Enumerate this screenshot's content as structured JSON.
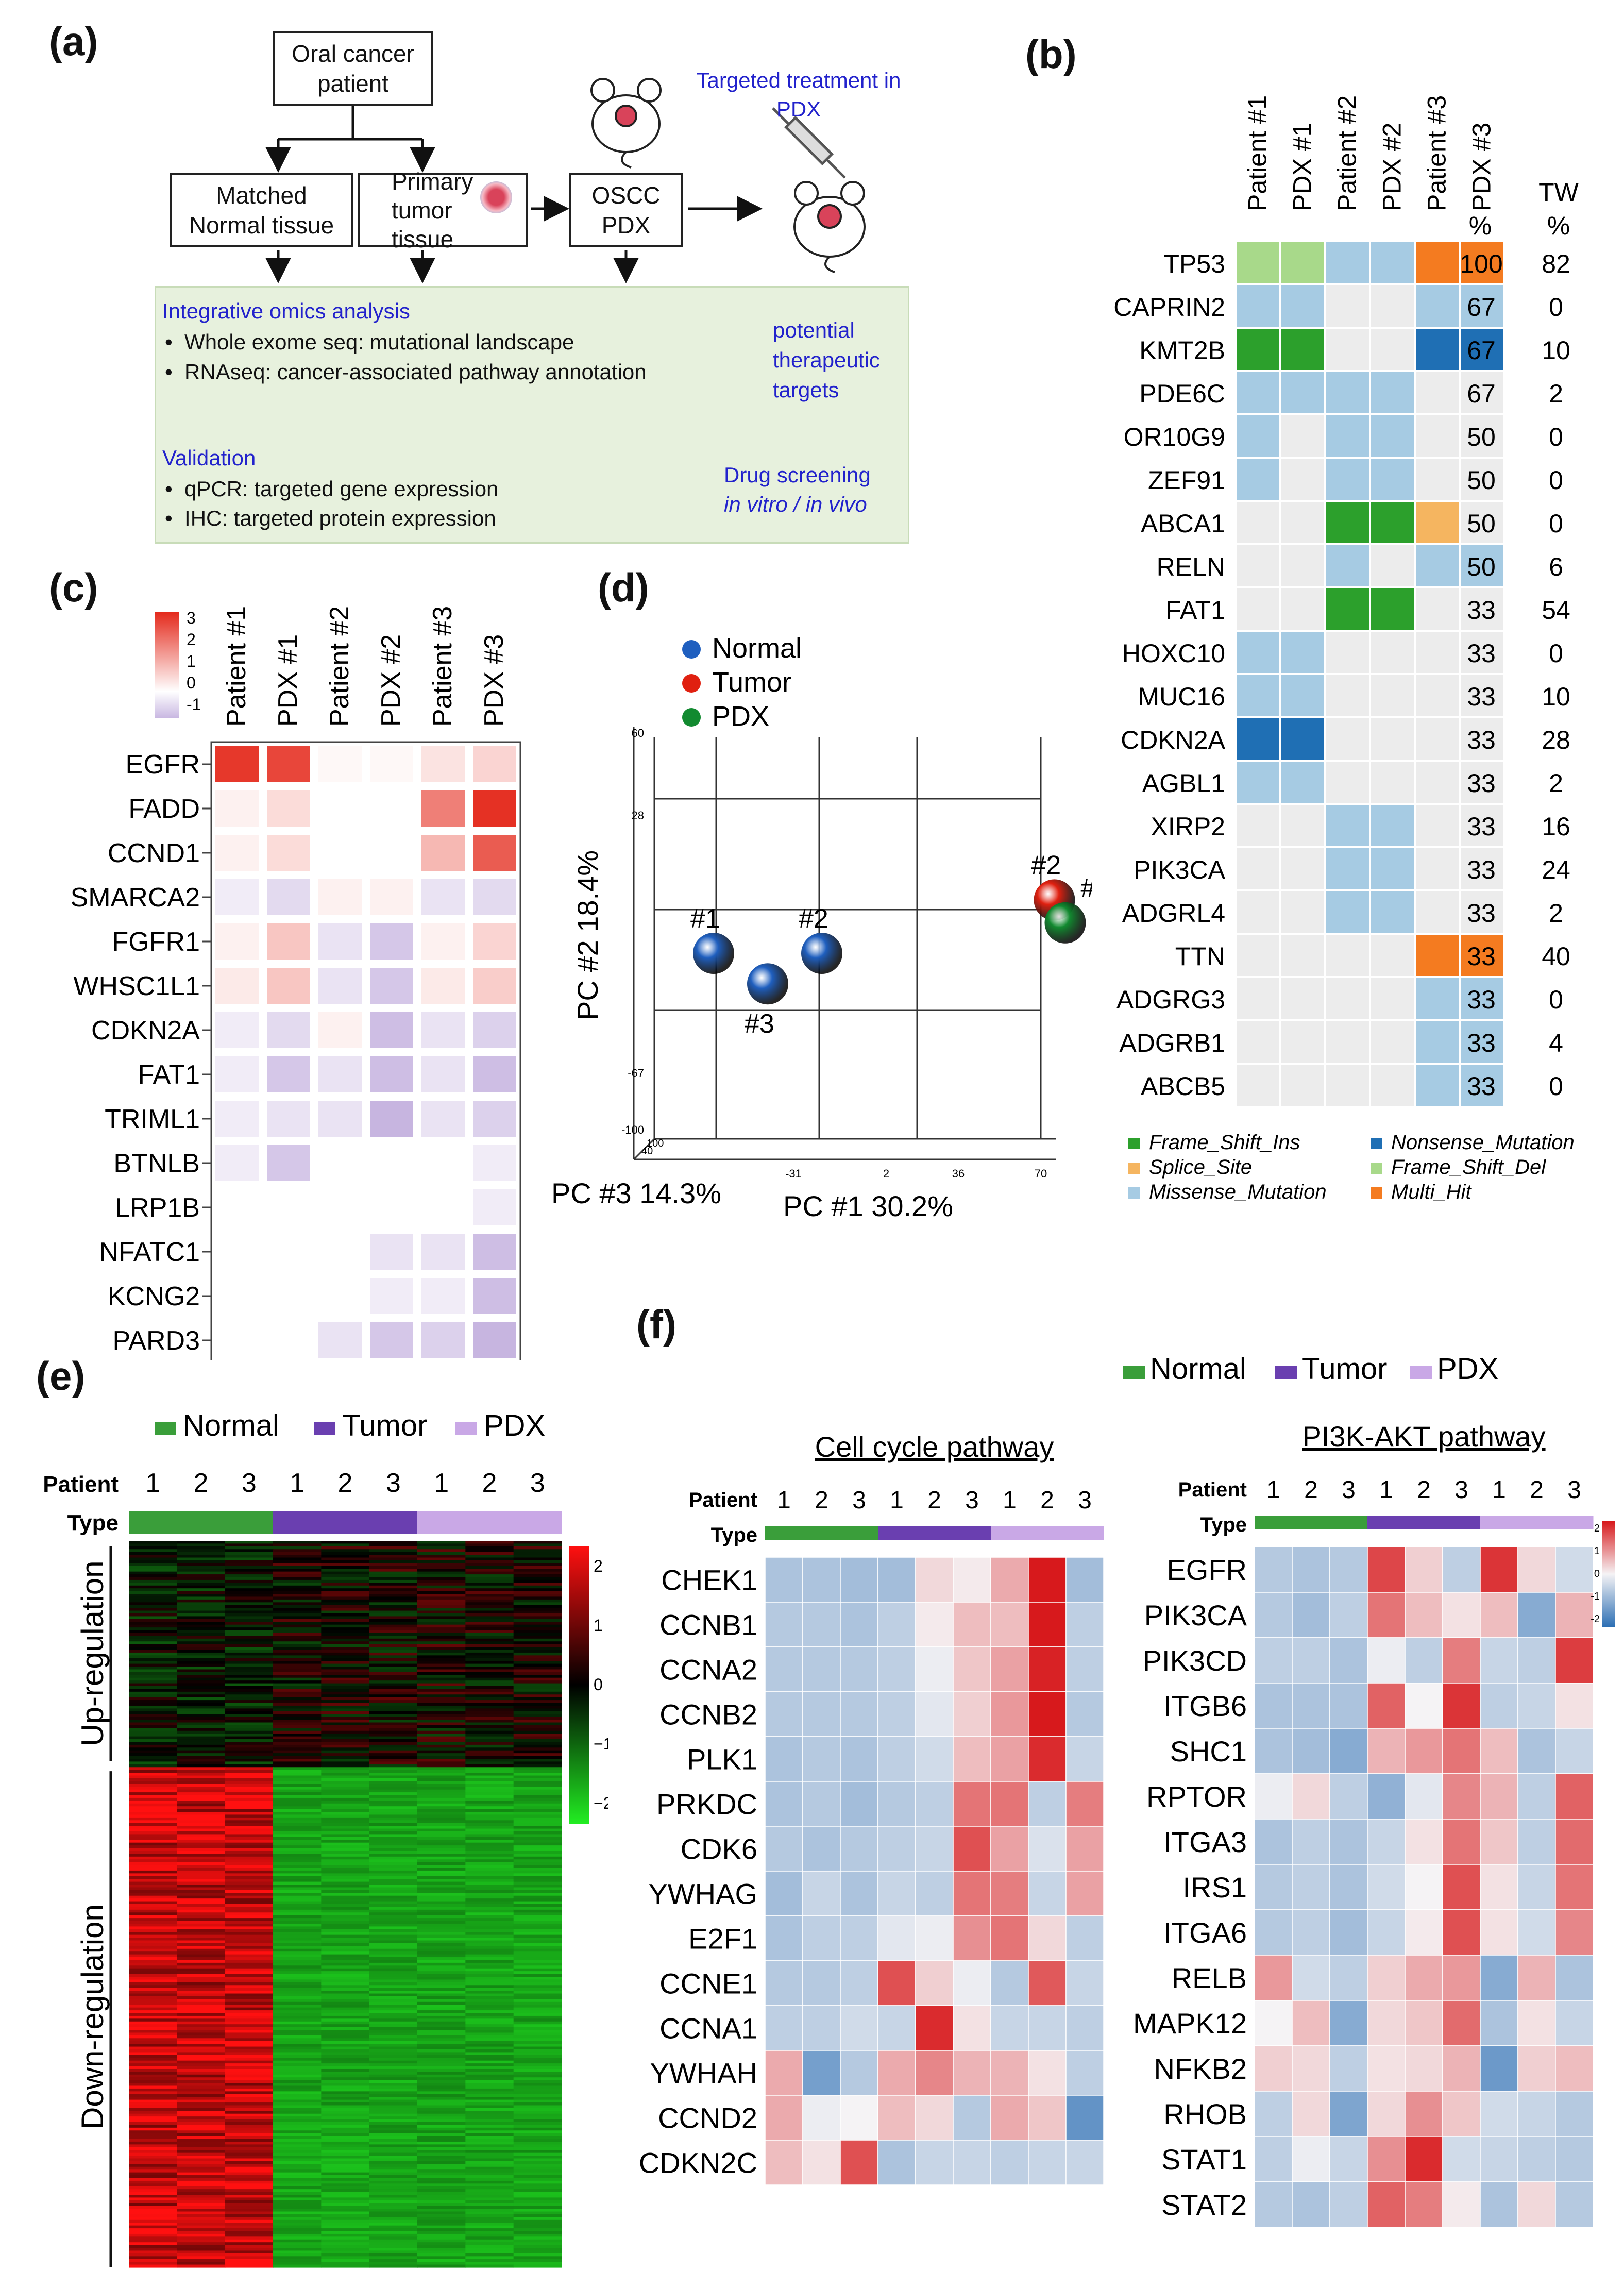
{
  "panel_labels": {
    "a": "(a)",
    "b": "(b)",
    "c": "(c)",
    "d": "(d)",
    "e": "(e)",
    "f": "(f)"
  },
  "panel_a": {
    "patient": "Oral cancer patient",
    "matched": "Matched Normal tissue",
    "primary": "Primary tumor tissue",
    "oscc": "OSCC PDX",
    "targeted": "Targeted treatment in PDX",
    "omics_title": "Integrative omics analysis",
    "omics_1": "Whole exome seq: mutational landscape",
    "omics_2": "RNAseq: cancer-associated pathway annotation",
    "potential": "potential therapeutic targets",
    "validation_title": "Validation",
    "val_1": "qPCR: targeted gene expression",
    "val_2": "IHC: targeted protein expression",
    "drug": "Drug screening",
    "drug_sub": "in vitro / in vivo",
    "colors": {
      "blue_text": "#2222cc",
      "box_bg": "#e7f1dd"
    }
  },
  "panel_b": {
    "columns": [
      "Patient #1",
      "PDX #1",
      "Patient #2",
      "PDX #2",
      "Patient #3",
      "PDX #3"
    ],
    "pct_header": "%",
    "tw_header": "TW %",
    "genes": [
      "TP53",
      "CAPRIN2",
      "KMT2B",
      "PDE6C",
      "OR10G9",
      "ZEF91",
      "ABCA1",
      "RELN",
      "FAT1",
      "HOXC10",
      "MUC16",
      "CDKN2A",
      "AGBL1",
      "XIRP2",
      "PIK3CA",
      "ADGRL4",
      "TTN",
      "ADGRG3",
      "ADGRB1",
      "ABCB5"
    ],
    "pct": [
      "100",
      "67",
      "67",
      "67",
      "50",
      "50",
      "50",
      "50",
      "33",
      "33",
      "33",
      "33",
      "33",
      "33",
      "33",
      "33",
      "33",
      "33",
      "33",
      "33"
    ],
    "tw": [
      "82",
      "0",
      "10",
      "2",
      "0",
      "0",
      "0",
      "6",
      "54",
      "0",
      "10",
      "28",
      "2",
      "16",
      "24",
      "2",
      "40",
      "0",
      "4",
      "0"
    ],
    "matrix": [
      [
        "fsd",
        "fsd",
        "mis",
        "mis",
        "mh",
        "mh"
      ],
      [
        "mis",
        "mis",
        "",
        "",
        "mis",
        "mis"
      ],
      [
        "fsi",
        "fsi",
        "",
        "",
        "non",
        "non"
      ],
      [
        "mis",
        "mis",
        "mis",
        "mis",
        "",
        ""
      ],
      [
        "mis",
        "",
        "mis",
        "mis",
        "",
        ""
      ],
      [
        "mis",
        "",
        "mis",
        "mis",
        "",
        ""
      ],
      [
        "",
        "",
        "fsi",
        "fsi",
        "ss",
        ""
      ],
      [
        "",
        "",
        "mis",
        "",
        "mis",
        "mis"
      ],
      [
        "",
        "",
        "fsi",
        "fsi",
        "",
        ""
      ],
      [
        "mis",
        "mis",
        "",
        "",
        "",
        ""
      ],
      [
        "mis",
        "mis",
        "",
        "",
        "",
        ""
      ],
      [
        "non",
        "non",
        "",
        "",
        "",
        ""
      ],
      [
        "mis",
        "mis",
        "",
        "",
        "",
        ""
      ],
      [
        "",
        "",
        "mis",
        "mis",
        "",
        ""
      ],
      [
        "",
        "",
        "mis",
        "mis",
        "",
        ""
      ],
      [
        "",
        "",
        "mis",
        "mis",
        "",
        ""
      ],
      [
        "",
        "",
        "",
        "",
        "mh",
        "mh"
      ],
      [
        "",
        "",
        "",
        "",
        "mis",
        "mis"
      ],
      [
        "",
        "",
        "",
        "",
        "mis",
        "mis"
      ],
      [
        "",
        "",
        "",
        "",
        "mis",
        "mis"
      ]
    ],
    "legend": [
      {
        "key": "fsi",
        "label": "Frame_Shift_Ins",
        "color": "#2ca02c"
      },
      {
        "key": "non",
        "label": "Nonsense_Mutation",
        "color": "#1f6fb4"
      },
      {
        "key": "ss",
        "label": "Splice_Site",
        "color": "#f5b560"
      },
      {
        "key": "fsd",
        "label": "Frame_Shift_Del",
        "color": "#a8d98a"
      },
      {
        "key": "mis",
        "label": "Missense_Mutation",
        "color": "#a6cbe3"
      },
      {
        "key": "mh",
        "label": "Multi_Hit",
        "color": "#f47b20"
      }
    ],
    "empty_color": "#ececec"
  },
  "panel_c": {
    "columns": [
      "Patient #1",
      "PDX #1",
      "Patient #2",
      "PDX #2",
      "Patient #3",
      "PDX #3"
    ],
    "genes": [
      "EGFR",
      "FADD",
      "CCND1",
      "SMARCA2",
      "FGFR1",
      "WHSC1L1",
      "CDKN2A",
      "FAT1",
      "TRIML1",
      "BTNLB",
      "LRP1B",
      "NFATC1",
      "KCNG2",
      "PARD3"
    ],
    "scale_ticks": [
      "3",
      "2",
      "1",
      "0",
      "-1"
    ],
    "values": [
      [
        2.8,
        2.6,
        0.1,
        0.1,
        0.4,
        0.6
      ],
      [
        0.2,
        0.5,
        null,
        null,
        1.8,
        2.9
      ],
      [
        0.2,
        0.5,
        null,
        null,
        1.0,
        2.3
      ],
      [
        -0.2,
        -0.4,
        0.2,
        0.2,
        -0.3,
        -0.4
      ],
      [
        0.2,
        0.8,
        -0.3,
        -0.6,
        0.2,
        0.6
      ],
      [
        0.3,
        0.8,
        -0.3,
        -0.6,
        0.3,
        0.7
      ],
      [
        -0.2,
        -0.4,
        0.2,
        -0.7,
        -0.3,
        -0.5
      ],
      [
        -0.2,
        -0.6,
        -0.3,
        -0.7,
        -0.3,
        -0.7
      ],
      [
        -0.2,
        -0.3,
        -0.3,
        -0.8,
        -0.3,
        -0.5
      ],
      [
        -0.2,
        -0.6,
        null,
        null,
        null,
        -0.2
      ],
      [
        null,
        null,
        null,
        null,
        null,
        -0.2
      ],
      [
        null,
        null,
        null,
        -0.3,
        -0.3,
        -0.7
      ],
      [
        null,
        null,
        null,
        -0.2,
        -0.2,
        -0.7
      ],
      [
        null,
        null,
        -0.3,
        -0.6,
        -0.5,
        -0.8
      ]
    ]
  },
  "chart_data": {
    "type": "scatter",
    "title": "",
    "xlabel": "PC #1 30.2%",
    "ylabel": "PC #2 18.4%",
    "zlabel": "PC #3 14.3%",
    "legend": [
      {
        "name": "Normal",
        "color": "#1f5fbf"
      },
      {
        "name": "Tumor",
        "color": "#e02010"
      },
      {
        "name": "PDX",
        "color": "#128a30"
      }
    ],
    "y_ticks": [
      "60",
      "28",
      "-67",
      "-100"
    ],
    "x_ticks": [
      "-31",
      "2",
      "36",
      "70"
    ],
    "z_ticks": [
      "40",
      "100"
    ],
    "points": [
      {
        "group": "Normal",
        "label": "#1",
        "pc1": -60,
        "pc2": 0
      },
      {
        "group": "Normal",
        "label": "#2",
        "pc1": -40,
        "pc2": 0
      },
      {
        "group": "Normal",
        "label": "#3",
        "pc1": -50,
        "pc2": -8
      },
      {
        "group": "Tumor",
        "label": "#2",
        "pc1": 3,
        "pc2": 14
      },
      {
        "group": "PDX",
        "label": "#2",
        "pc1": 5,
        "pc2": 8
      },
      {
        "group": "Tumor",
        "label": "#3",
        "pc1": 50,
        "pc2": 50
      },
      {
        "group": "PDX",
        "label": "#3",
        "pc1": 58,
        "pc2": 50
      },
      {
        "group": "Tumor",
        "label": "#1",
        "pc1": 25,
        "pc2": -45
      },
      {
        "group": "PDX",
        "label": "#1",
        "pc1": 45,
        "pc2": -95
      }
    ]
  },
  "panel_e": {
    "legend": [
      {
        "label": "Normal",
        "color": "#3a9e3a"
      },
      {
        "label": "Tumor",
        "color": "#6a3fb0"
      },
      {
        "label": "PDX",
        "color": "#c9a8e6"
      }
    ],
    "patient_label": "Patient",
    "type_label": "Type",
    "patients": [
      "1",
      "2",
      "3",
      "1",
      "2",
      "3",
      "1",
      "2",
      "3"
    ],
    "up_label": "Up-regulation",
    "down_label": "Down-regulation",
    "scale_ticks": [
      "2",
      "1",
      "0",
      "−1",
      "−2"
    ]
  },
  "panel_f": {
    "legend": [
      {
        "label": "Normal",
        "color": "#3a9e3a"
      },
      {
        "label": "Tumor",
        "color": "#6a3fb0"
      },
      {
        "label": "PDX",
        "color": "#c9a8e6"
      }
    ],
    "patient_label": "Patient",
    "type_label": "Type",
    "patients": [
      "1",
      "2",
      "3",
      "1",
      "2",
      "3",
      "1",
      "2",
      "3"
    ],
    "cell_cycle": {
      "title": "Cell cycle pathway",
      "genes": [
        "CHEK1",
        "CCNB1",
        "CCNA2",
        "CCNB2",
        "PLK1",
        "PRKDC",
        "CDK6",
        "YWHAG",
        "E2F1",
        "CCNE1",
        "CCNA1",
        "YWHAH",
        "CCND2",
        "CDKN2C"
      ],
      "values": [
        [
          -0.8,
          -0.8,
          -0.9,
          -0.9,
          0.3,
          0.1,
          0.8,
          2.4,
          -0.9
        ],
        [
          -0.7,
          -0.7,
          -0.8,
          -0.6,
          0.1,
          0.6,
          0.6,
          2.4,
          -0.6
        ],
        [
          -0.7,
          -0.7,
          -0.7,
          -0.6,
          -0.1,
          0.5,
          0.9,
          2.3,
          -0.6
        ],
        [
          -0.7,
          -0.7,
          -0.7,
          -0.6,
          -0.2,
          0.4,
          1.0,
          2.4,
          -0.7
        ],
        [
          -0.8,
          -0.7,
          -0.8,
          -0.6,
          -0.4,
          0.6,
          0.9,
          2.2,
          -0.5
        ],
        [
          -0.8,
          -0.7,
          -0.9,
          -0.7,
          -0.6,
          1.4,
          1.4,
          -0.6,
          1.3
        ],
        [
          -0.7,
          -0.8,
          -0.7,
          -0.6,
          -0.5,
          1.8,
          0.9,
          -0.3,
          0.9
        ],
        [
          -0.9,
          -0.5,
          -0.8,
          -0.5,
          -0.6,
          1.4,
          1.3,
          -0.5,
          0.9
        ],
        [
          -0.8,
          -0.6,
          -0.6,
          -0.2,
          -0.1,
          1.1,
          1.4,
          0.3,
          -0.6
        ],
        [
          -0.7,
          -0.7,
          -0.6,
          1.8,
          0.4,
          -0.1,
          -0.7,
          1.7,
          -0.5
        ],
        [
          -0.6,
          -0.6,
          -0.4,
          -0.5,
          2.2,
          0.2,
          -0.5,
          -0.5,
          -0.6
        ],
        [
          0.8,
          -1.4,
          -0.7,
          0.8,
          1.2,
          0.7,
          0.7,
          0.2,
          -0.6
        ],
        [
          0.8,
          -0.1,
          0.0,
          0.6,
          0.3,
          -0.7,
          0.8,
          0.5,
          -1.6
        ],
        [
          0.6,
          0.2,
          1.8,
          -0.8,
          -0.5,
          -0.5,
          -0.6,
          -0.5,
          -0.5
        ]
      ]
    },
    "pi3k": {
      "title": "PI3K-AKT pathway",
      "genes": [
        "EGFR",
        "PIK3CA",
        "PIK3CD",
        "ITGB6",
        "SHC1",
        "RPTOR",
        "ITGA3",
        "IRS1",
        "ITGA6",
        "RELB",
        "MAPK12",
        "NFKB2",
        "RHOB",
        "STAT1",
        "STAT2"
      ],
      "scale_ticks": [
        "2",
        "1",
        "0",
        "-1",
        "-2"
      ],
      "values": [
        [
          -0.7,
          -0.8,
          -0.7,
          1.9,
          0.4,
          -0.6,
          2.1,
          0.3,
          -0.4
        ],
        [
          -0.7,
          -0.9,
          -0.6,
          1.4,
          0.6,
          0.2,
          0.6,
          -1.2,
          0.7
        ],
        [
          -0.6,
          -0.6,
          -0.8,
          -0.1,
          -0.6,
          1.3,
          -0.5,
          -0.6,
          2.0
        ],
        [
          -0.8,
          -0.8,
          -0.8,
          1.6,
          0.0,
          2.1,
          -0.6,
          -0.5,
          0.2
        ],
        [
          -0.8,
          -0.9,
          -1.2,
          0.7,
          1.0,
          1.4,
          0.6,
          -0.8,
          -0.5
        ],
        [
          -0.1,
          0.3,
          -0.6,
          -1.1,
          -0.2,
          1.2,
          0.7,
          -0.6,
          1.6
        ],
        [
          -0.8,
          -0.6,
          -0.8,
          -0.5,
          0.2,
          1.4,
          0.5,
          -0.6,
          1.5
        ],
        [
          -0.7,
          -0.6,
          -0.8,
          -0.4,
          0.0,
          1.8,
          0.2,
          -0.5,
          1.4
        ],
        [
          -0.7,
          -0.6,
          -0.9,
          -0.5,
          0.1,
          1.8,
          0.2,
          -0.4,
          1.2
        ],
        [
          1.0,
          -0.4,
          -0.6,
          0.4,
          0.8,
          1.0,
          -1.2,
          0.7,
          -0.8
        ],
        [
          0.0,
          0.6,
          -1.2,
          0.3,
          0.5,
          1.5,
          -0.8,
          0.2,
          -0.5
        ],
        [
          0.4,
          0.3,
          -0.6,
          0.2,
          0.3,
          0.7,
          -1.5,
          0.4,
          0.6
        ],
        [
          -0.6,
          0.3,
          -1.3,
          0.3,
          1.1,
          0.5,
          -0.4,
          -0.5,
          -0.7
        ],
        [
          -0.6,
          -0.1,
          -0.5,
          1.1,
          2.2,
          -0.4,
          -0.5,
          -0.6,
          -0.7
        ],
        [
          -0.7,
          -0.8,
          -0.6,
          1.6,
          1.3,
          0.1,
          -0.8,
          0.3,
          -0.7
        ]
      ]
    }
  }
}
